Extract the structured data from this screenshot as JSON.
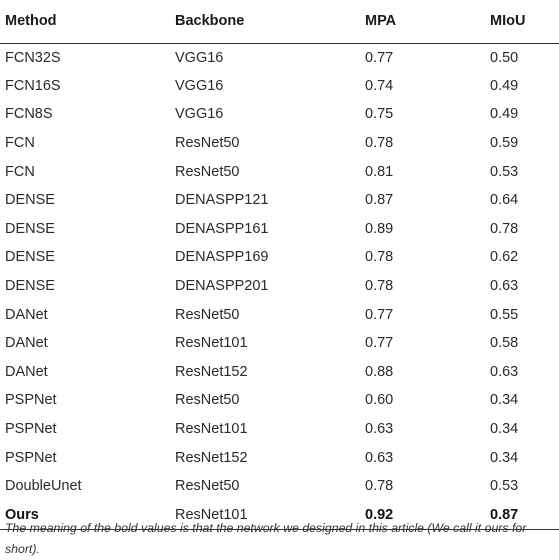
{
  "table": {
    "headers": {
      "method": "Method",
      "backbone": "Backbone",
      "mpa": "MPA",
      "miou": "MIoU"
    },
    "rows": [
      {
        "method": "FCN32S",
        "backbone": "VGG16",
        "mpa": "0.77",
        "miou": "0.50",
        "bold": false
      },
      {
        "method": "FCN16S",
        "backbone": "VGG16",
        "mpa": "0.74",
        "miou": "0.49",
        "bold": false
      },
      {
        "method": "FCN8S",
        "backbone": "VGG16",
        "mpa": "0.75",
        "miou": "0.49",
        "bold": false
      },
      {
        "method": "FCN",
        "backbone": "ResNet50",
        "mpa": "0.78",
        "miou": "0.59",
        "bold": false
      },
      {
        "method": "FCN",
        "backbone": "ResNet50",
        "mpa": "0.81",
        "miou": "0.53",
        "bold": false
      },
      {
        "method": "DENSE",
        "backbone": "DENASPP121",
        "mpa": "0.87",
        "miou": "0.64",
        "bold": false
      },
      {
        "method": "DENSE",
        "backbone": "DENASPP161",
        "mpa": "0.89",
        "miou": "0.78",
        "bold": false
      },
      {
        "method": "DENSE",
        "backbone": "DENASPP169",
        "mpa": "0.78",
        "miou": "0.62",
        "bold": false
      },
      {
        "method": "DENSE",
        "backbone": "DENASPP201",
        "mpa": "0.78",
        "miou": "0.63",
        "bold": false
      },
      {
        "method": "DANet",
        "backbone": "ResNet50",
        "mpa": "0.77",
        "miou": "0.55",
        "bold": false
      },
      {
        "method": "DANet",
        "backbone": "ResNet101",
        "mpa": "0.77",
        "miou": "0.58",
        "bold": false
      },
      {
        "method": "DANet",
        "backbone": "ResNet152",
        "mpa": "0.88",
        "miou": "0.63",
        "bold": false
      },
      {
        "method": "PSPNet",
        "backbone": "ResNet50",
        "mpa": "0.60",
        "miou": "0.34",
        "bold": false
      },
      {
        "method": "PSPNet",
        "backbone": "ResNet101",
        "mpa": "0.63",
        "miou": "0.34",
        "bold": false
      },
      {
        "method": "PSPNet",
        "backbone": "ResNet152",
        "mpa": "0.63",
        "miou": "0.34",
        "bold": false
      },
      {
        "method": "DoubleUnet",
        "backbone": "ResNet50",
        "mpa": "0.78",
        "miou": "0.53",
        "bold": false
      },
      {
        "method": "Ours",
        "backbone": "ResNet101",
        "mpa": "0.92",
        "miou": "0.87",
        "bold": true
      }
    ]
  },
  "footnote": "The meaning of the bold values is that the network we designed in this article (We call it ours for short)."
}
